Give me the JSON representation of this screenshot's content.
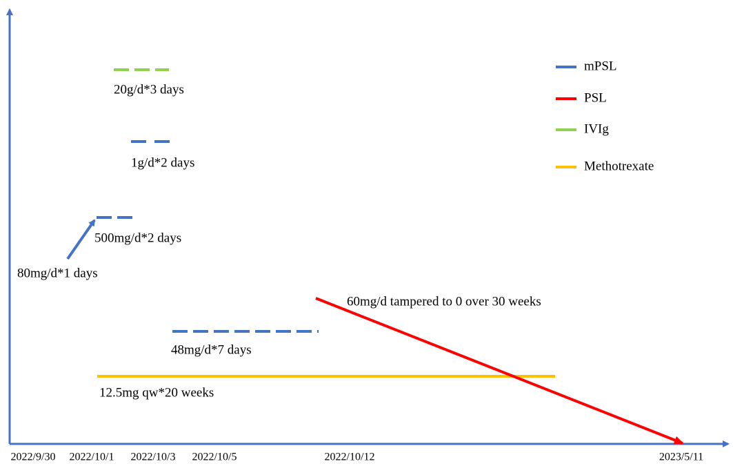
{
  "legend": [
    {
      "label": "mPSL",
      "color": "#4472c4"
    },
    {
      "label": "PSL",
      "color": "#ff0000"
    },
    {
      "label": "IVIg",
      "color": "#92d050"
    },
    {
      "label": "Methotrexate",
      "color": "#ffc000"
    }
  ],
  "annotations": {
    "ivig": "20g/d*3 days",
    "mpsl_1g": "1g/d*2 days",
    "mpsl_500mg": "500mg/d*2 days",
    "mpsl_80mg": "80mg/d*1 days",
    "psl": "60mg/d tampered to 0 over 30 weeks",
    "mpsl_48mg": "48mg/d*7 days",
    "methotrexate": "12.5mg qw*20 weeks"
  },
  "x_labels": [
    "2022/9/30",
    "2022/10/1",
    "2022/10/3",
    "2022/10/5",
    "2022/10/12",
    "2023/5/11"
  ]
}
